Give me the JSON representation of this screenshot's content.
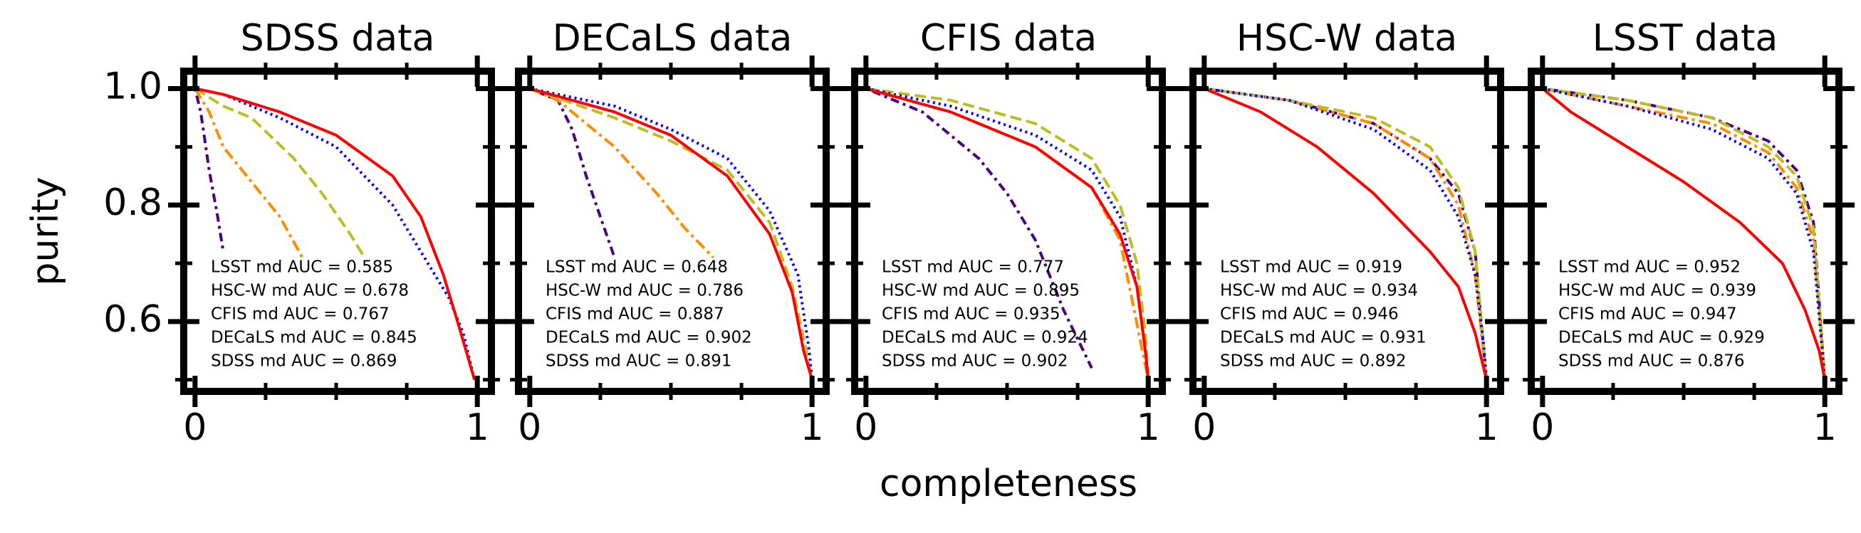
{
  "chart_data": [
    {
      "type": "line",
      "title": "SDSS data",
      "y_label": "purity",
      "ytick_labels": true,
      "xlim": [
        -0.04,
        1.05
      ],
      "ylim": [
        0.48,
        1.03
      ],
      "xticks": [
        0,
        1
      ],
      "yticks": [
        0.6,
        0.8,
        {
          "value": 1,
          "label": "1.0"
        }
      ],
      "xminorticks": [
        0.25,
        0.5,
        0.75
      ],
      "yminorticks": [
        0.5,
        0.7,
        0.9
      ],
      "series": [
        {
          "color": "#4b0082",
          "linestyle": "dashdotdot",
          "x": [
            0,
            0.02,
            0.05,
            0.08,
            0.1
          ],
          "values": [
            1,
            0.96,
            0.86,
            0.78,
            0.72
          ]
        },
        {
          "color": "#ff8c00",
          "linestyle": "dashdot",
          "x": [
            0,
            0.05,
            0.1,
            0.2,
            0.3,
            0.38
          ],
          "values": [
            1,
            0.96,
            0.9,
            0.84,
            0.78,
            0.71
          ]
        },
        {
          "color": "#bcbd22",
          "linestyle": "dashed",
          "x": [
            0,
            0.1,
            0.2,
            0.35,
            0.45,
            0.55,
            0.6
          ],
          "values": [
            1,
            0.97,
            0.95,
            0.88,
            0.82,
            0.75,
            0.71
          ]
        },
        {
          "color": "#0000ff",
          "linestyle": "dotted",
          "x": [
            0,
            0.1,
            0.3,
            0.5,
            0.7,
            0.8,
            0.9,
            0.95,
            0.99
          ],
          "values": [
            1,
            0.99,
            0.95,
            0.9,
            0.8,
            0.72,
            0.64,
            0.58,
            0.5
          ]
        },
        {
          "color": "#ff0000",
          "linestyle": "solid",
          "x": [
            0,
            0.1,
            0.3,
            0.5,
            0.7,
            0.8,
            0.88,
            0.93,
            0.96,
            0.99
          ],
          "values": [
            1,
            0.99,
            0.96,
            0.92,
            0.85,
            0.78,
            0.68,
            0.6,
            0.55,
            0.5
          ]
        }
      ],
      "annotations": [
        {
          "text": "LSST md AUC = 0.585",
          "color": "#4b0082"
        },
        {
          "text": "HSC-W md AUC = 0.678",
          "color": "#ff8c00"
        },
        {
          "text": "CFIS md AUC = 0.767",
          "color": "#bcbd22"
        },
        {
          "text": "DECaLS md AUC = 0.845",
          "color": "#0000ff"
        },
        {
          "text": "SDSS md AUC = 0.869",
          "color": "#ff0000"
        }
      ]
    },
    {
      "type": "line",
      "title": "DECaLS data",
      "ytick_labels": false,
      "xlim": [
        -0.04,
        1.05
      ],
      "ylim": [
        0.48,
        1.03
      ],
      "xticks": [
        0,
        1
      ],
      "yticks": [
        0.6,
        0.8,
        {
          "value": 1,
          "label": "1.0"
        }
      ],
      "xminorticks": [
        0.25,
        0.5,
        0.75
      ],
      "yminorticks": [
        0.5,
        0.7,
        0.9
      ],
      "series": [
        {
          "color": "#4b0082",
          "linestyle": "dashdotdot",
          "x": [
            0,
            0.1,
            0.15,
            0.2,
            0.25,
            0.3
          ],
          "values": [
            1,
            0.98,
            0.93,
            0.85,
            0.78,
            0.71
          ]
        },
        {
          "color": "#ff8c00",
          "linestyle": "dashdot",
          "x": [
            0,
            0.1,
            0.3,
            0.45,
            0.55,
            0.65
          ],
          "values": [
            1,
            0.98,
            0.9,
            0.82,
            0.76,
            0.71
          ]
        },
        {
          "color": "#bcbd22",
          "linestyle": "dashed",
          "x": [
            0,
            0.3,
            0.5,
            0.7,
            0.85,
            0.93,
            0.98,
            1
          ],
          "values": [
            1,
            0.95,
            0.91,
            0.86,
            0.77,
            0.66,
            0.55,
            0.5
          ]
        },
        {
          "color": "#0000ff",
          "linestyle": "dotted",
          "x": [
            0,
            0.3,
            0.5,
            0.7,
            0.85,
            0.95,
            0.99,
            1
          ],
          "values": [
            1,
            0.97,
            0.93,
            0.88,
            0.79,
            0.68,
            0.55,
            0.5
          ]
        },
        {
          "color": "#ff0000",
          "linestyle": "solid",
          "x": [
            0,
            0.3,
            0.5,
            0.7,
            0.85,
            0.93,
            0.97,
            1
          ],
          "values": [
            1,
            0.96,
            0.92,
            0.85,
            0.75,
            0.65,
            0.55,
            0.5
          ]
        }
      ],
      "annotations": [
        {
          "text": "LSST md AUC = 0.648",
          "color": "#4b0082"
        },
        {
          "text": "HSC-W md AUC = 0.786",
          "color": "#ff8c00"
        },
        {
          "text": "CFIS md AUC = 0.887",
          "color": "#bcbd22"
        },
        {
          "text": "DECaLS md AUC = 0.902",
          "color": "#0000ff"
        },
        {
          "text": "SDSS md AUC = 0.891",
          "color": "#ff0000"
        }
      ]
    },
    {
      "type": "line",
      "title": "CFIS data",
      "x_label": "completeness",
      "ytick_labels": false,
      "xlim": [
        -0.04,
        1.05
      ],
      "ylim": [
        0.48,
        1.03
      ],
      "xticks": [
        0,
        1
      ],
      "yticks": [
        0.6,
        0.8,
        {
          "value": 1,
          "label": "1.0"
        }
      ],
      "xminorticks": [
        0.25,
        0.5,
        0.75
      ],
      "yminorticks": [
        0.5,
        0.7,
        0.9
      ],
      "series": [
        {
          "color": "#4b0082",
          "linestyle": "dashdotdot",
          "x": [
            0,
            0.2,
            0.4,
            0.5,
            0.6,
            0.7,
            0.8
          ],
          "values": [
            1,
            0.96,
            0.88,
            0.82,
            0.74,
            0.62,
            0.52
          ]
        },
        {
          "color": "#ff8c00",
          "linestyle": "dashdot",
          "x": [
            0,
            0.3,
            0.6,
            0.8,
            0.9,
            0.95,
            1
          ],
          "values": [
            1,
            0.96,
            0.9,
            0.83,
            0.74,
            0.62,
            0.5
          ]
        },
        {
          "color": "#bcbd22",
          "linestyle": "dashed",
          "x": [
            0,
            0.3,
            0.6,
            0.8,
            0.9,
            0.96,
            0.99,
            1
          ],
          "values": [
            1,
            0.98,
            0.94,
            0.88,
            0.8,
            0.7,
            0.58,
            0.5
          ]
        },
        {
          "color": "#0000ff",
          "linestyle": "dotted",
          "x": [
            0,
            0.3,
            0.6,
            0.8,
            0.9,
            0.96,
            0.99,
            1
          ],
          "values": [
            1,
            0.97,
            0.92,
            0.86,
            0.78,
            0.66,
            0.55,
            0.5
          ]
        },
        {
          "color": "#ff0000",
          "linestyle": "solid",
          "x": [
            0,
            0.3,
            0.6,
            0.8,
            0.9,
            0.96,
            0.99,
            1
          ],
          "values": [
            1,
            0.96,
            0.9,
            0.83,
            0.75,
            0.66,
            0.55,
            0.5
          ]
        }
      ],
      "annotations": [
        {
          "text": "LSST md AUC = 0.777",
          "color": "#4b0082"
        },
        {
          "text": "HSC-W md AUC = 0.895",
          "color": "#ff8c00"
        },
        {
          "text": "CFIS md AUC = 0.935",
          "color": "#bcbd22"
        },
        {
          "text": "DECaLS md AUC = 0.924",
          "color": "#0000ff"
        },
        {
          "text": "SDSS md AUC = 0.902",
          "color": "#ff0000"
        }
      ]
    },
    {
      "type": "line",
      "title": "HSC-W data",
      "ytick_labels": false,
      "xlim": [
        -0.04,
        1.05
      ],
      "ylim": [
        0.48,
        1.03
      ],
      "xticks": [
        0,
        1
      ],
      "yticks": [
        0.6,
        0.8,
        {
          "value": 1,
          "label": "1.0"
        }
      ],
      "xminorticks": [
        0.25,
        0.5,
        0.75
      ],
      "yminorticks": [
        0.5,
        0.7,
        0.9
      ],
      "series": [
        {
          "color": "#4b0082",
          "linestyle": "dashdotdot",
          "x": [
            0,
            0.3,
            0.6,
            0.8,
            0.9,
            0.96,
            0.99,
            1
          ],
          "values": [
            1,
            0.98,
            0.94,
            0.88,
            0.82,
            0.72,
            0.55,
            0.5
          ]
        },
        {
          "color": "#ff8c00",
          "linestyle": "dashdot",
          "x": [
            0,
            0.3,
            0.6,
            0.8,
            0.9,
            0.96,
            1
          ],
          "values": [
            1,
            0.98,
            0.94,
            0.88,
            0.8,
            0.68,
            0.5
          ]
        },
        {
          "color": "#bcbd22",
          "linestyle": "dashed",
          "x": [
            0,
            0.3,
            0.6,
            0.8,
            0.9,
            0.96,
            1
          ],
          "values": [
            1,
            0.98,
            0.95,
            0.9,
            0.83,
            0.72,
            0.5
          ]
        },
        {
          "color": "#0000ff",
          "linestyle": "dotted",
          "x": [
            0,
            0.3,
            0.6,
            0.8,
            0.9,
            0.96,
            0.99,
            1
          ],
          "values": [
            1,
            0.98,
            0.93,
            0.86,
            0.78,
            0.68,
            0.56,
            0.5
          ]
        },
        {
          "color": "#ff0000",
          "linestyle": "solid",
          "x": [
            0,
            0.2,
            0.4,
            0.6,
            0.8,
            0.9,
            0.96,
            1
          ],
          "values": [
            1,
            0.96,
            0.9,
            0.82,
            0.72,
            0.66,
            0.58,
            0.5
          ]
        }
      ],
      "annotations": [
        {
          "text": "LSST md AUC = 0.919",
          "color": "#4b0082"
        },
        {
          "text": "HSC-W md AUC = 0.934",
          "color": "#ff8c00"
        },
        {
          "text": "CFIS md AUC = 0.946",
          "color": "#bcbd22"
        },
        {
          "text": "DECaLS md AUC = 0.931",
          "color": "#0000ff"
        },
        {
          "text": "SDSS md AUC = 0.892",
          "color": "#ff0000"
        }
      ]
    },
    {
      "type": "line",
      "title": "LSST data",
      "ytick_labels": false,
      "xlim": [
        -0.04,
        1.05
      ],
      "ylim": [
        0.48,
        1.03
      ],
      "xticks": [
        0,
        1
      ],
      "yticks": [
        0.6,
        0.8,
        {
          "value": 1,
          "label": "1.0"
        }
      ],
      "xminorticks": [
        0.25,
        0.5,
        0.75
      ],
      "yminorticks": [
        0.5,
        0.7,
        0.9
      ],
      "series": [
        {
          "color": "#4b0082",
          "linestyle": "dashdotdot",
          "x": [
            0,
            0.3,
            0.6,
            0.8,
            0.9,
            0.96,
            1
          ],
          "values": [
            1,
            0.98,
            0.95,
            0.91,
            0.86,
            0.77,
            0.5
          ]
        },
        {
          "color": "#ff8c00",
          "linestyle": "dashdot",
          "x": [
            0,
            0.3,
            0.6,
            0.8,
            0.9,
            0.96,
            1
          ],
          "values": [
            1,
            0.97,
            0.94,
            0.89,
            0.83,
            0.74,
            0.5
          ]
        },
        {
          "color": "#bcbd22",
          "linestyle": "dashed",
          "x": [
            0,
            0.3,
            0.6,
            0.8,
            0.9,
            0.96,
            1
          ],
          "values": [
            1,
            0.98,
            0.95,
            0.9,
            0.85,
            0.76,
            0.5
          ]
        },
        {
          "color": "#0000ff",
          "linestyle": "dotted",
          "x": [
            0,
            0.3,
            0.6,
            0.8,
            0.9,
            0.96,
            1
          ],
          "values": [
            1,
            0.97,
            0.93,
            0.88,
            0.82,
            0.72,
            0.5
          ]
        },
        {
          "color": "#ff0000",
          "linestyle": "solid",
          "x": [
            0,
            0.1,
            0.3,
            0.5,
            0.7,
            0.85,
            0.93,
            0.98,
            1
          ],
          "values": [
            1,
            0.96,
            0.9,
            0.84,
            0.77,
            0.7,
            0.62,
            0.55,
            0.5
          ]
        }
      ],
      "annotations": [
        {
          "text": "LSST md AUC = 0.952",
          "color": "#4b0082"
        },
        {
          "text": "HSC-W md AUC = 0.939",
          "color": "#ff8c00"
        },
        {
          "text": "CFIS md AUC = 0.947",
          "color": "#bcbd22"
        },
        {
          "text": "DECaLS md AUC = 0.929",
          "color": "#0000ff"
        },
        {
          "text": "SDSS md AUC = 0.876",
          "color": "#ff0000"
        }
      ]
    }
  ]
}
